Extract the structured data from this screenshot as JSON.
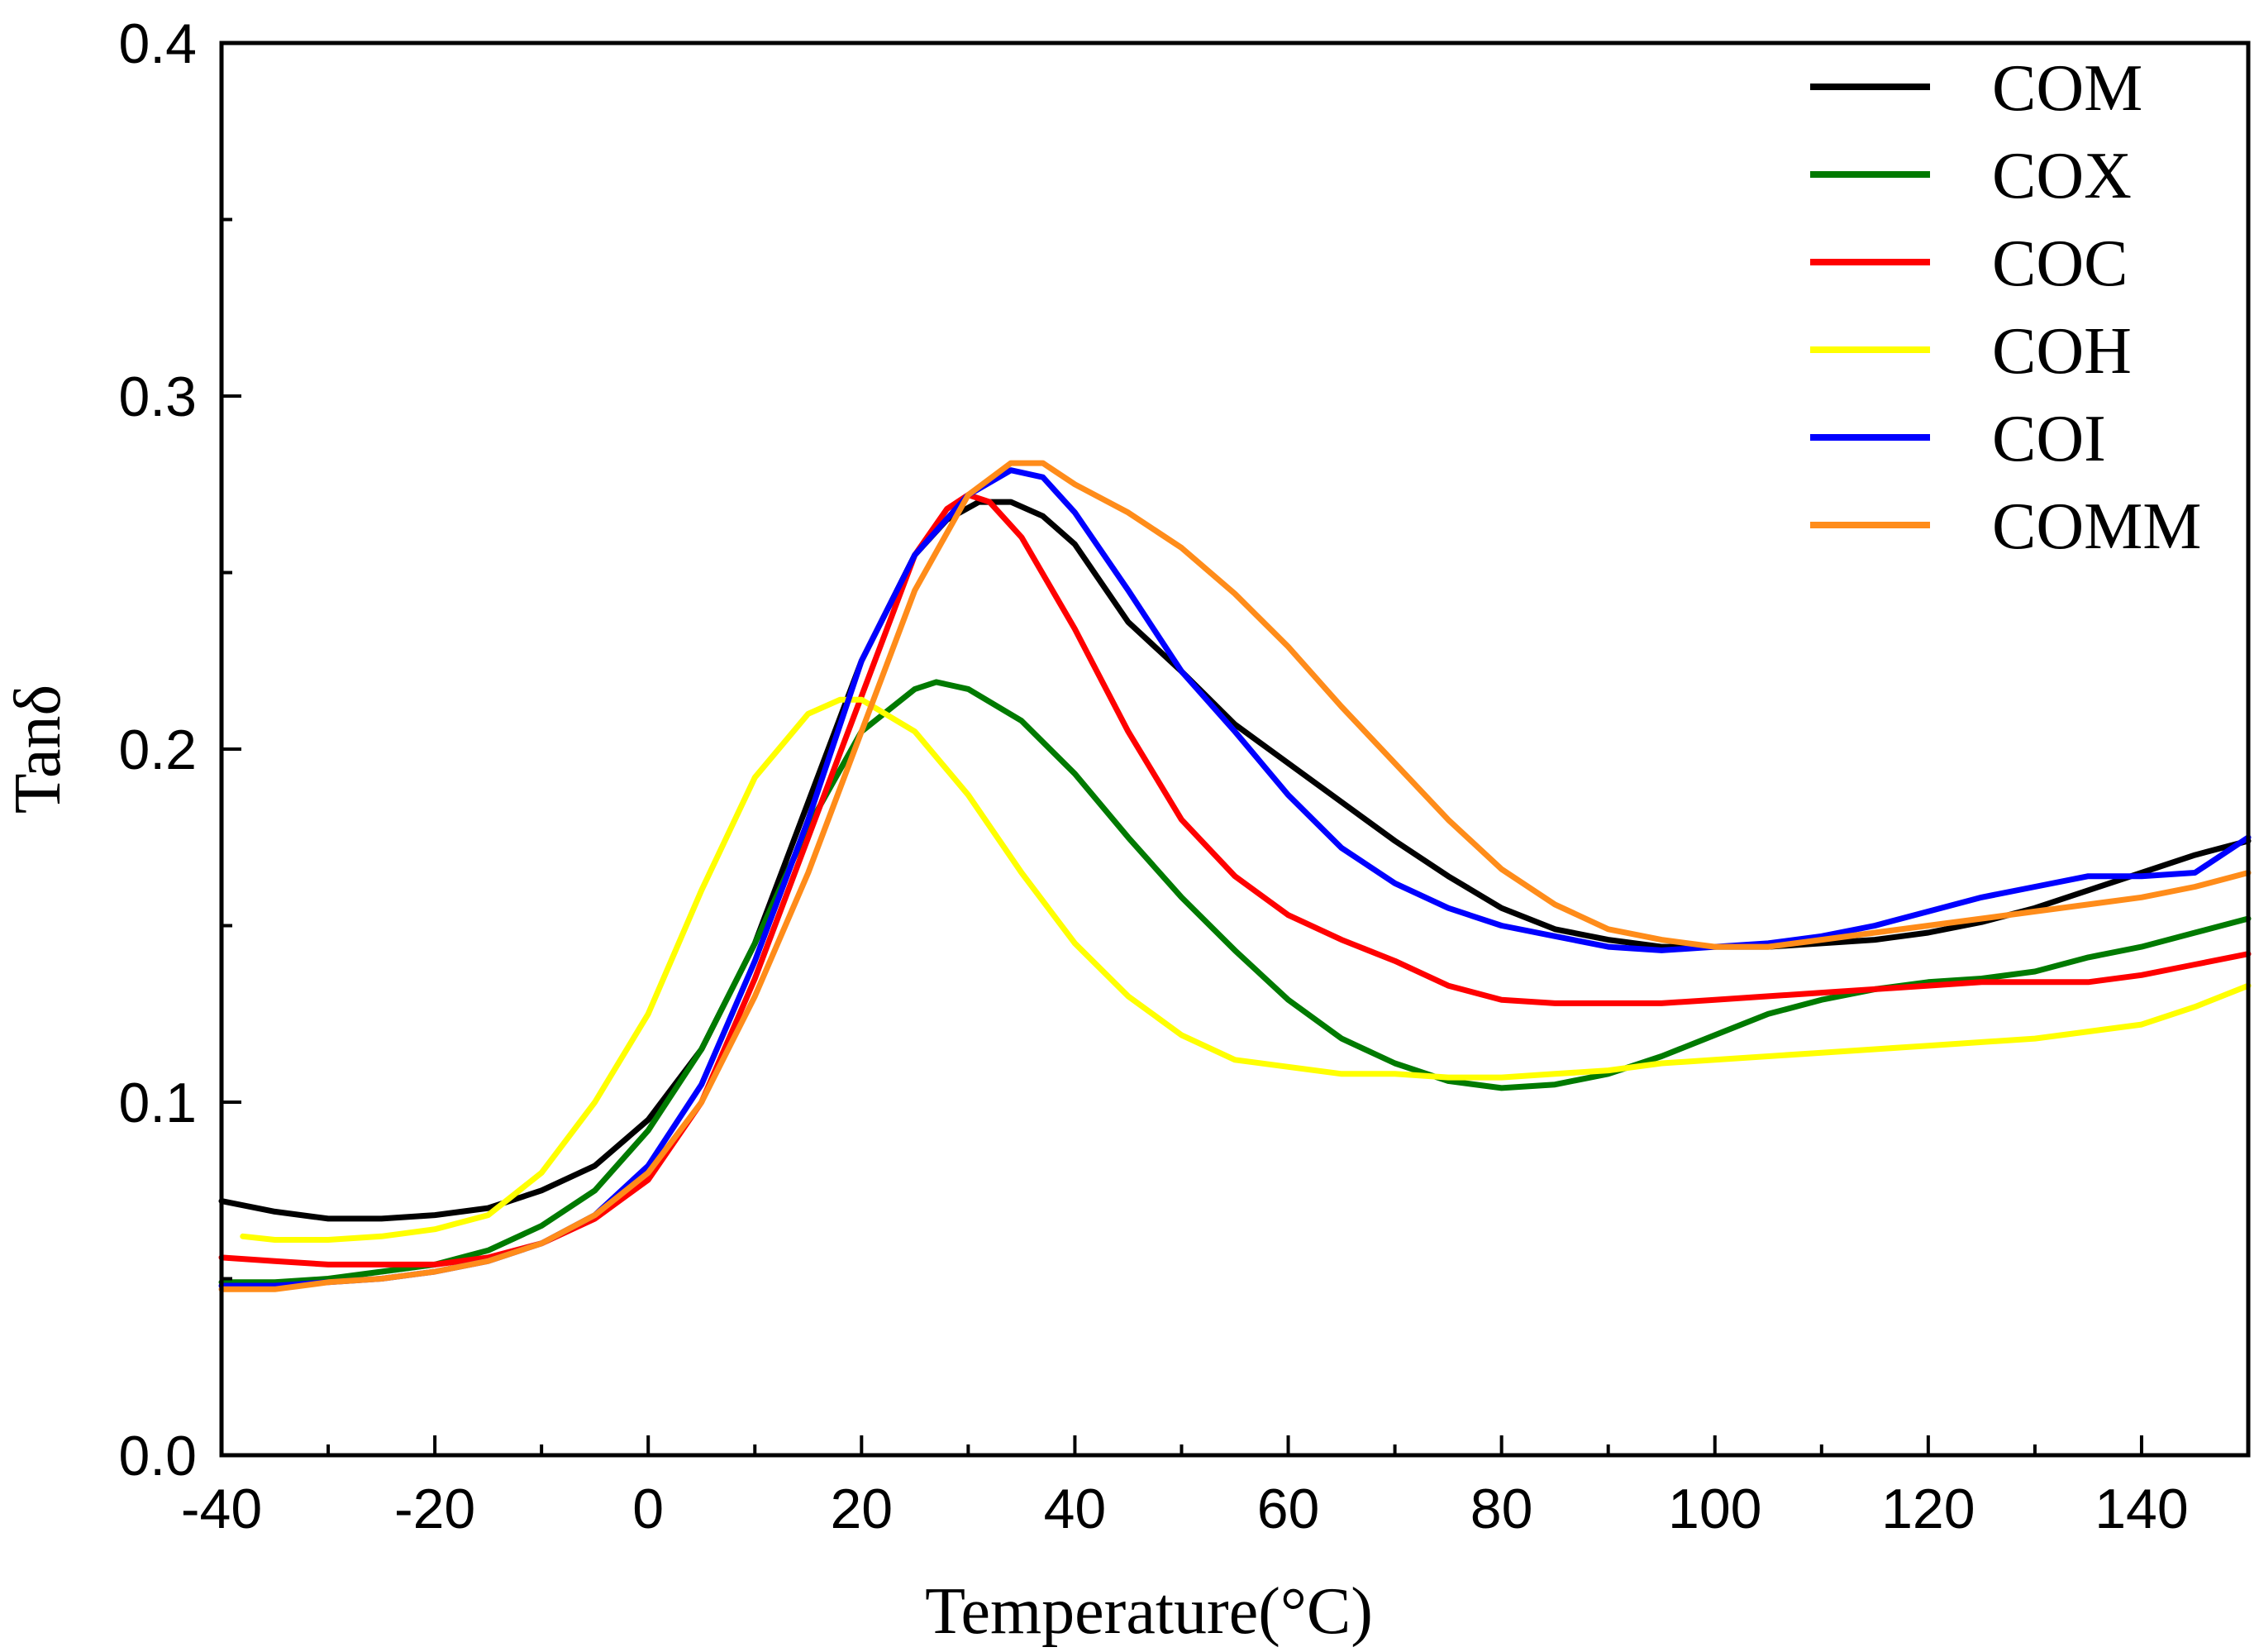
{
  "chart_data": {
    "type": "line",
    "title": "",
    "xlabel": "Temperature(°C)",
    "ylabel": "Tanδ",
    "xlim": [
      -40,
      150
    ],
    "ylim": [
      0.0,
      0.4
    ],
    "x_ticks": [
      "-40",
      "-20",
      "0",
      "20",
      "40",
      "60",
      "80",
      "100",
      "120",
      "140"
    ],
    "y_ticks": [
      "0.0",
      "0.1",
      "0.2",
      "0.3",
      "0.4"
    ],
    "grid": false,
    "legend_position": "top-right",
    "series": [
      {
        "name": "COM",
        "color": "#000000",
        "points": [
          [
            -40,
            0.072
          ],
          [
            -35,
            0.069
          ],
          [
            -30,
            0.067
          ],
          [
            -25,
            0.067
          ],
          [
            -20,
            0.068
          ],
          [
            -15,
            0.07
          ],
          [
            -10,
            0.075
          ],
          [
            -5,
            0.082
          ],
          [
            0,
            0.095
          ],
          [
            5,
            0.115
          ],
          [
            10,
            0.145
          ],
          [
            15,
            0.185
          ],
          [
            20,
            0.225
          ],
          [
            25,
            0.255
          ],
          [
            28,
            0.265
          ],
          [
            31,
            0.27
          ],
          [
            34,
            0.27
          ],
          [
            37,
            0.266
          ],
          [
            40,
            0.258
          ],
          [
            45,
            0.236
          ],
          [
            50,
            0.222
          ],
          [
            55,
            0.207
          ],
          [
            60,
            0.196
          ],
          [
            65,
            0.185
          ],
          [
            70,
            0.174
          ],
          [
            75,
            0.164
          ],
          [
            80,
            0.155
          ],
          [
            85,
            0.149
          ],
          [
            90,
            0.146
          ],
          [
            95,
            0.144
          ],
          [
            100,
            0.144
          ],
          [
            105,
            0.144
          ],
          [
            110,
            0.145
          ],
          [
            115,
            0.146
          ],
          [
            120,
            0.148
          ],
          [
            125,
            0.151
          ],
          [
            130,
            0.155
          ],
          [
            135,
            0.16
          ],
          [
            140,
            0.165
          ],
          [
            145,
            0.17
          ],
          [
            150,
            0.174
          ]
        ]
      },
      {
        "name": "COX",
        "color": "#007a00",
        "points": [
          [
            -40,
            0.049
          ],
          [
            -35,
            0.049
          ],
          [
            -30,
            0.05
          ],
          [
            -25,
            0.052
          ],
          [
            -20,
            0.054
          ],
          [
            -15,
            0.058
          ],
          [
            -10,
            0.065
          ],
          [
            -5,
            0.075
          ],
          [
            0,
            0.092
          ],
          [
            5,
            0.115
          ],
          [
            10,
            0.145
          ],
          [
            15,
            0.178
          ],
          [
            20,
            0.205
          ],
          [
            25,
            0.217
          ],
          [
            27,
            0.219
          ],
          [
            30,
            0.217
          ],
          [
            35,
            0.208
          ],
          [
            40,
            0.193
          ],
          [
            45,
            0.175
          ],
          [
            50,
            0.158
          ],
          [
            55,
            0.143
          ],
          [
            60,
            0.129
          ],
          [
            65,
            0.118
          ],
          [
            70,
            0.111
          ],
          [
            75,
            0.106
          ],
          [
            80,
            0.104
          ],
          [
            85,
            0.105
          ],
          [
            90,
            0.108
          ],
          [
            95,
            0.113
          ],
          [
            100,
            0.119
          ],
          [
            105,
            0.125
          ],
          [
            110,
            0.129
          ],
          [
            115,
            0.132
          ],
          [
            120,
            0.134
          ],
          [
            125,
            0.135
          ],
          [
            130,
            0.137
          ],
          [
            135,
            0.141
          ],
          [
            140,
            0.144
          ],
          [
            145,
            0.148
          ],
          [
            150,
            0.152
          ]
        ]
      },
      {
        "name": "COC",
        "color": "#ff0000",
        "points": [
          [
            -40,
            0.056
          ],
          [
            -35,
            0.055
          ],
          [
            -30,
            0.054
          ],
          [
            -25,
            0.054
          ],
          [
            -20,
            0.054
          ],
          [
            -15,
            0.056
          ],
          [
            -10,
            0.06
          ],
          [
            -5,
            0.067
          ],
          [
            0,
            0.078
          ],
          [
            5,
            0.1
          ],
          [
            10,
            0.135
          ],
          [
            15,
            0.175
          ],
          [
            20,
            0.215
          ],
          [
            25,
            0.255
          ],
          [
            28,
            0.268
          ],
          [
            30,
            0.272
          ],
          [
            32,
            0.27
          ],
          [
            35,
            0.26
          ],
          [
            40,
            0.234
          ],
          [
            45,
            0.205
          ],
          [
            50,
            0.18
          ],
          [
            55,
            0.164
          ],
          [
            60,
            0.153
          ],
          [
            65,
            0.146
          ],
          [
            70,
            0.14
          ],
          [
            75,
            0.133
          ],
          [
            80,
            0.129
          ],
          [
            85,
            0.128
          ],
          [
            90,
            0.128
          ],
          [
            95,
            0.128
          ],
          [
            100,
            0.129
          ],
          [
            105,
            0.13
          ],
          [
            110,
            0.131
          ],
          [
            115,
            0.132
          ],
          [
            120,
            0.133
          ],
          [
            125,
            0.134
          ],
          [
            130,
            0.134
          ],
          [
            135,
            0.134
          ],
          [
            140,
            0.136
          ],
          [
            145,
            0.139
          ],
          [
            150,
            0.142
          ]
        ]
      },
      {
        "name": "COH",
        "color": "#ffff00",
        "points": [
          [
            -38,
            0.062
          ],
          [
            -35,
            0.061
          ],
          [
            -30,
            0.061
          ],
          [
            -25,
            0.062
          ],
          [
            -20,
            0.064
          ],
          [
            -15,
            0.068
          ],
          [
            -10,
            0.08
          ],
          [
            -5,
            0.1
          ],
          [
            0,
            0.125
          ],
          [
            5,
            0.16
          ],
          [
            10,
            0.192
          ],
          [
            15,
            0.21
          ],
          [
            18,
            0.214
          ],
          [
            20,
            0.214
          ],
          [
            25,
            0.205
          ],
          [
            30,
            0.187
          ],
          [
            35,
            0.165
          ],
          [
            40,
            0.145
          ],
          [
            45,
            0.13
          ],
          [
            50,
            0.119
          ],
          [
            55,
            0.112
          ],
          [
            60,
            0.11
          ],
          [
            65,
            0.108
          ],
          [
            70,
            0.108
          ],
          [
            75,
            0.107
          ],
          [
            80,
            0.107
          ],
          [
            85,
            0.108
          ],
          [
            90,
            0.109
          ],
          [
            95,
            0.111
          ],
          [
            100,
            0.112
          ],
          [
            105,
            0.113
          ],
          [
            110,
            0.114
          ],
          [
            115,
            0.115
          ],
          [
            120,
            0.116
          ],
          [
            125,
            0.117
          ],
          [
            130,
            0.118
          ],
          [
            135,
            0.12
          ],
          [
            140,
            0.122
          ],
          [
            145,
            0.127
          ],
          [
            150,
            0.133
          ]
        ]
      },
      {
        "name": "COI",
        "color": "#0000ff",
        "points": [
          [
            -40,
            0.048
          ],
          [
            -35,
            0.048
          ],
          [
            -30,
            0.049
          ],
          [
            -25,
            0.05
          ],
          [
            -20,
            0.052
          ],
          [
            -15,
            0.055
          ],
          [
            -10,
            0.06
          ],
          [
            -5,
            0.068
          ],
          [
            0,
            0.082
          ],
          [
            5,
            0.105
          ],
          [
            10,
            0.14
          ],
          [
            15,
            0.18
          ],
          [
            20,
            0.225
          ],
          [
            25,
            0.255
          ],
          [
            30,
            0.272
          ],
          [
            34,
            0.279
          ],
          [
            37,
            0.277
          ],
          [
            40,
            0.267
          ],
          [
            45,
            0.245
          ],
          [
            50,
            0.222
          ],
          [
            55,
            0.205
          ],
          [
            60,
            0.187
          ],
          [
            65,
            0.172
          ],
          [
            70,
            0.162
          ],
          [
            75,
            0.155
          ],
          [
            80,
            0.15
          ],
          [
            85,
            0.147
          ],
          [
            90,
            0.144
          ],
          [
            95,
            0.143
          ],
          [
            100,
            0.144
          ],
          [
            105,
            0.145
          ],
          [
            110,
            0.147
          ],
          [
            115,
            0.15
          ],
          [
            120,
            0.154
          ],
          [
            125,
            0.158
          ],
          [
            130,
            0.161
          ],
          [
            135,
            0.164
          ],
          [
            140,
            0.164
          ],
          [
            145,
            0.165
          ],
          [
            150,
            0.175
          ]
        ]
      },
      {
        "name": "COMM",
        "color": "#ff8c1a",
        "points": [
          [
            -40,
            0.047
          ],
          [
            -35,
            0.047
          ],
          [
            -30,
            0.049
          ],
          [
            -25,
            0.05
          ],
          [
            -20,
            0.052
          ],
          [
            -15,
            0.055
          ],
          [
            -10,
            0.06
          ],
          [
            -5,
            0.068
          ],
          [
            0,
            0.08
          ],
          [
            5,
            0.1
          ],
          [
            10,
            0.13
          ],
          [
            15,
            0.165
          ],
          [
            20,
            0.205
          ],
          [
            25,
            0.245
          ],
          [
            30,
            0.272
          ],
          [
            34,
            0.281
          ],
          [
            37,
            0.281
          ],
          [
            40,
            0.275
          ],
          [
            45,
            0.267
          ],
          [
            50,
            0.257
          ],
          [
            55,
            0.244
          ],
          [
            60,
            0.229
          ],
          [
            65,
            0.212
          ],
          [
            70,
            0.196
          ],
          [
            75,
            0.18
          ],
          [
            80,
            0.166
          ],
          [
            85,
            0.156
          ],
          [
            90,
            0.149
          ],
          [
            95,
            0.146
          ],
          [
            100,
            0.144
          ],
          [
            105,
            0.144
          ],
          [
            110,
            0.146
          ],
          [
            115,
            0.148
          ],
          [
            120,
            0.15
          ],
          [
            125,
            0.152
          ],
          [
            130,
            0.154
          ],
          [
            135,
            0.156
          ],
          [
            140,
            0.158
          ],
          [
            145,
            0.161
          ],
          [
            150,
            0.165
          ]
        ]
      }
    ]
  }
}
